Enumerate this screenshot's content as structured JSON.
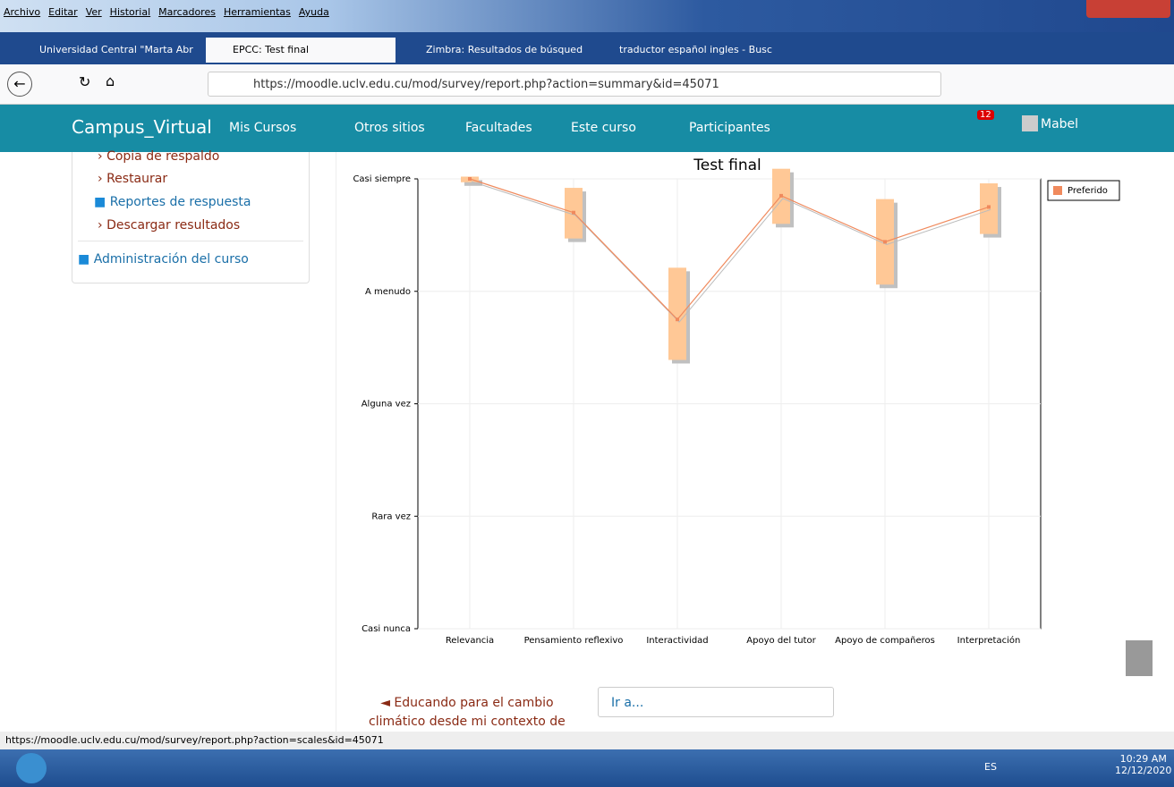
{
  "browser": {
    "menu": [
      "Archivo",
      "Editar",
      "Ver",
      "Historial",
      "Marcadores",
      "Herramientas",
      "Ayuda"
    ],
    "tabs": [
      "Universidad Central \"Marta Abr",
      "EPCC: Test final",
      "Zimbra: Resultados de búsqued",
      "traductor español ingles - Busc"
    ],
    "url": "https://moodle.uclv.edu.cu/mod/survey/report.php?action=summary&id=45071",
    "status": "https://moodle.uclv.edu.cu/mod/survey/report.php?action=scales&id=45071"
  },
  "navbar": {
    "brand": "Campus_Virtual",
    "items": [
      "Mis Cursos",
      "Otros sitios",
      "Facultades",
      "Este curso",
      "Participantes"
    ],
    "badge": "12",
    "user": "Mabel"
  },
  "sidebar": {
    "links": [
      "Copia de respaldo",
      "Restaurar"
    ],
    "reports": "Reportes de respuesta",
    "download": "Descargar resultados",
    "admin": "Administración del curso"
  },
  "footer": {
    "prev_line1": "◄ Educando para el cambio",
    "prev_line2": "climático desde mi contexto de",
    "jump": "Ir a..."
  },
  "taskbar": {
    "lang": "ES",
    "time": "10:29 AM",
    "date": "12/12/2020"
  },
  "chart_data": {
    "type": "range-line",
    "title": "Test final",
    "categories": [
      "Relevancia",
      "Pensamiento reflexivo",
      "Interactividad",
      "Apoyo del tutor",
      "Apoyo de compañeros",
      "Interpretación"
    ],
    "series": [
      {
        "name": "Preferido",
        "color": "#ffc896",
        "line_color": "#f08a5d",
        "values": [
          5.0,
          4.7,
          3.75,
          4.85,
          4.44,
          4.75
        ],
        "low": [
          4.97,
          4.47,
          3.39,
          4.6,
          4.06,
          4.51
        ],
        "high": [
          5.02,
          4.92,
          4.21,
          5.09,
          4.82,
          4.96
        ]
      }
    ],
    "ylim": [
      1,
      5
    ],
    "yticks": [
      {
        "value": 1,
        "label": "Casi nunca"
      },
      {
        "value": 2,
        "label": "Rara vez"
      },
      {
        "value": 3,
        "label": "Alguna vez"
      },
      {
        "value": 4,
        "label": "A menudo"
      },
      {
        "value": 5,
        "label": "Casi siempre"
      }
    ],
    "grid": true,
    "legend": "top-right"
  }
}
